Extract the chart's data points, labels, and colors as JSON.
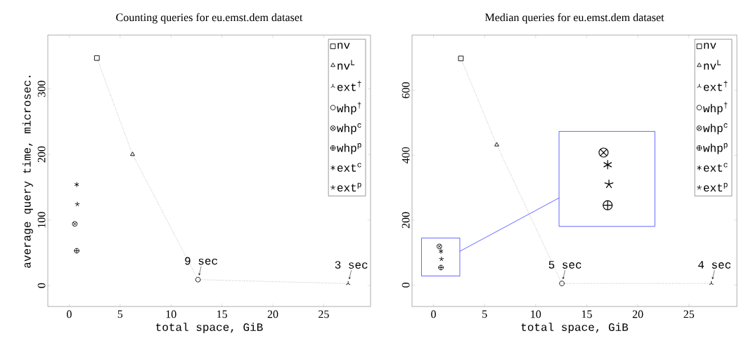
{
  "chart_data": [
    {
      "type": "scatter",
      "title": "Counting queries for eu.emst.dem dataset",
      "xlabel": "total space, GiB",
      "ylabel": "average query time, microsec.",
      "xlim": [
        -2.1,
        29.6
      ],
      "ylim": [
        -32,
        382
      ],
      "xticks": [
        0,
        5,
        10,
        15,
        20,
        25
      ],
      "yticks": [
        0,
        100,
        200,
        300
      ],
      "legend": "top right",
      "series": [
        {
          "type": "line",
          "line_style": "dotted",
          "marker": "none",
          "color": "#000000",
          "x": [
            2.72,
            6.22,
            12.65,
            27.4
          ],
          "values": [
            347,
            200,
            9,
            3
          ]
        },
        {
          "name": "nv",
          "marker": "square",
          "color": "#000000",
          "x": [
            2.72
          ],
          "values": [
            347
          ]
        },
        {
          "name": "nv$^{L}$",
          "marker": "triangle",
          "color": "#000000",
          "x": [
            6.22
          ],
          "values": [
            200
          ]
        },
        {
          "name": "ext$^{†}$",
          "color": "#000000",
          "x": [
            27.4
          ],
          "values": [
            3
          ]
        },
        {
          "name": "whp$^{†}$",
          "marker": "circle",
          "color": "#000000",
          "x": [
            12.65
          ],
          "values": [
            9
          ]
        },
        {
          "name": "whp$^{c}$",
          "color": "#000000",
          "x": [
            0.55
          ],
          "values": [
            94
          ]
        },
        {
          "name": "whp$^{p}$",
          "color": "#000000",
          "x": [
            0.74
          ],
          "values": [
            53
          ]
        },
        {
          "name": "ext$^{c}$",
          "color": "#000000",
          "x": [
            0.74
          ],
          "values": [
            154
          ]
        },
        {
          "name": "ext$^{p}$",
          "color": "#000000",
          "x": [
            0.8
          ],
          "values": [
            124
          ]
        }
      ],
      "annotations": [
        {
          "text": "9 sec",
          "x": 12.65,
          "y": 9
        },
        {
          "text": "3 sec",
          "x": 27.4,
          "y": 3
        }
      ]
    },
    {
      "type": "scatter",
      "title": "Median queries for eu.emst.dem dataset",
      "xlabel": "total space, GiB",
      "xlim": [
        -2.1,
        29.7
      ],
      "ylim": [
        -66,
        770
      ],
      "xticks": [
        0,
        5,
        10,
        15,
        20,
        25
      ],
      "yticks": [
        0,
        200,
        400,
        600
      ],
      "legend": "top right",
      "series": [
        {
          "type": "line",
          "line_style": "dotted",
          "marker": "none",
          "color": "#000000",
          "x": [
            2.68,
            6.19,
            12.57,
            27.2
          ],
          "values": [
            698,
            432,
            5,
            5
          ]
        },
        {
          "name": "nv",
          "marker": "square",
          "color": "#000000",
          "x": [
            2.68
          ],
          "values": [
            698
          ]
        },
        {
          "name": "nv$^{L}$",
          "marker": "triangle",
          "color": "#000000",
          "x": [
            6.19
          ],
          "values": [
            432
          ]
        },
        {
          "name": "ext$^{†}$",
          "color": "#000000",
          "x": [
            27.2
          ],
          "values": [
            5
          ]
        },
        {
          "name": "whp$^{†}$",
          "marker": "circle",
          "color": "#000000",
          "x": [
            12.57
          ],
          "values": [
            5
          ]
        },
        {
          "name": "whp$^{c}$",
          "color": "#000000",
          "x": [
            0.57
          ],
          "values": [
            119
          ]
        },
        {
          "name": "whp$^{p}$",
          "color": "#000000",
          "x": [
            0.73
          ],
          "values": [
            54
          ]
        },
        {
          "name": "ext$^{c}$",
          "color": "#000000",
          "x": [
            0.73
          ],
          "values": [
            104
          ]
        },
        {
          "name": "ext$^{p}$",
          "color": "#000000",
          "x": [
            0.78
          ],
          "values": [
            80
          ]
        }
      ],
      "annotations": [
        {
          "text": "5 sec",
          "x": 12.57,
          "y": 5
        },
        {
          "text": "4 sec",
          "x": 27.2,
          "y": 5
        }
      ]
    }
  ]
}
